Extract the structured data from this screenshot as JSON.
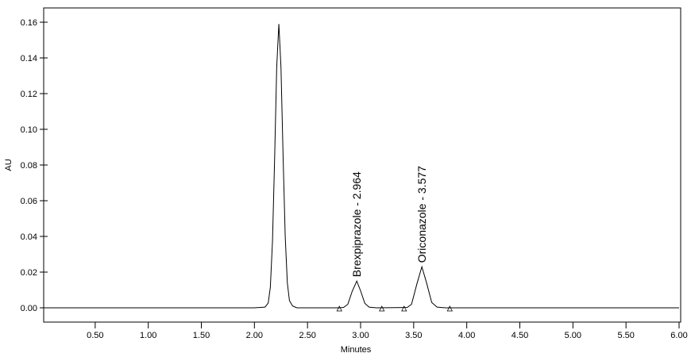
{
  "chart_data": {
    "type": "line",
    "x_label": "Minutes",
    "y_label": "AU",
    "x": [
      0,
      2.0,
      2.1,
      2.13,
      2.15,
      2.17,
      2.19,
      2.21,
      2.23,
      2.25,
      2.27,
      2.29,
      2.31,
      2.33,
      2.36,
      2.4,
      2.8,
      2.84,
      2.88,
      2.92,
      2.964,
      3.0,
      3.04,
      3.08,
      3.15,
      3.44,
      3.48,
      3.53,
      3.577,
      3.62,
      3.67,
      3.72,
      3.8,
      6.0
    ],
    "y": [
      0,
      0,
      0.0004,
      0.0027,
      0.0116,
      0.037,
      0.083,
      0.135,
      0.159,
      0.135,
      0.085,
      0.04,
      0.014,
      0.004,
      0.001,
      0,
      0,
      0.0002,
      0.002,
      0.0091,
      0.015,
      0.0095,
      0.0025,
      0.0004,
      0,
      0.0002,
      0.002,
      0.0133,
      0.023,
      0.0143,
      0.003,
      0.0004,
      0,
      0
    ],
    "color": "#000000",
    "peaks": [
      {
        "label": "Brexpiprazole - 2.964",
        "time": 2.964,
        "height": 0.015
      },
      {
        "label": "Oriconazole - 3.577",
        "time": 3.577,
        "height": 0.023
      }
    ],
    "integration_marks": [
      2.8,
      3.2,
      3.41,
      3.84
    ],
    "xlim": [
      0,
      6
    ],
    "ylim": [
      -0.008,
      0.168
    ],
    "xticks": [
      {
        "value": 0.5,
        "label": "0.50"
      },
      {
        "value": 1,
        "label": "1.00"
      },
      {
        "value": 1.5,
        "label": "1.50"
      },
      {
        "value": 2,
        "label": "2.00"
      },
      {
        "value": 2.5,
        "label": "2.50"
      },
      {
        "value": 3,
        "label": "3.00"
      },
      {
        "value": 3.5,
        "label": "3.50"
      },
      {
        "value": 4,
        "label": "4.00"
      },
      {
        "value": 4.5,
        "label": "4.50"
      },
      {
        "value": 5,
        "label": "5.00"
      },
      {
        "value": 5.5,
        "label": "5.50"
      },
      {
        "value": 6,
        "label": "6.00"
      }
    ],
    "yticks": [
      {
        "value": 0,
        "label": "0.00"
      },
      {
        "value": 0.02,
        "label": "0.02"
      },
      {
        "value": 0.04,
        "label": "0.04"
      },
      {
        "value": 0.06,
        "label": "0.06"
      },
      {
        "value": 0.08,
        "label": "0.08"
      },
      {
        "value": 0.1,
        "label": "0.10"
      },
      {
        "value": 0.12,
        "label": "0.12"
      },
      {
        "value": 0.14,
        "label": "0.14"
      },
      {
        "value": 0.16,
        "label": "0.16"
      }
    ]
  }
}
